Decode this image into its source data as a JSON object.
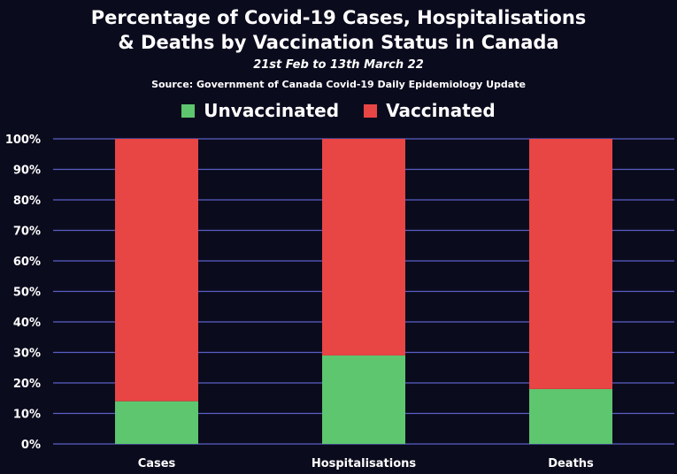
{
  "title_line1": "Percentage of Covid-19 Cases, Hospitalisations",
  "title_line2": "& Deaths by Vaccination Status in Canada",
  "subtitle": "21st Feb to 13th March 22",
  "source": "Source: Government of Canada  Covid-19 Daily Epidemiology Update",
  "colors": {
    "unvaccinated": "#5dc66f",
    "vaccinated": "#e84545",
    "grid": "#5a5fc4",
    "background": "#0b0b1e"
  },
  "chart_data": {
    "type": "bar",
    "stacked": true,
    "categories": [
      "Cases",
      "Hospitalisations",
      "Deaths"
    ],
    "series": [
      {
        "name": "Unvaccinated",
        "values": [
          14,
          29,
          18
        ]
      },
      {
        "name": "Vaccinated",
        "values": [
          86,
          71,
          82
        ]
      }
    ],
    "y_ticks": [
      "0%",
      "10%",
      "20%",
      "30%",
      "40%",
      "50%",
      "60%",
      "70%",
      "80%",
      "90%",
      "100%"
    ],
    "ylim": [
      0,
      100
    ],
    "grid": true,
    "legend_position": "top-center"
  }
}
